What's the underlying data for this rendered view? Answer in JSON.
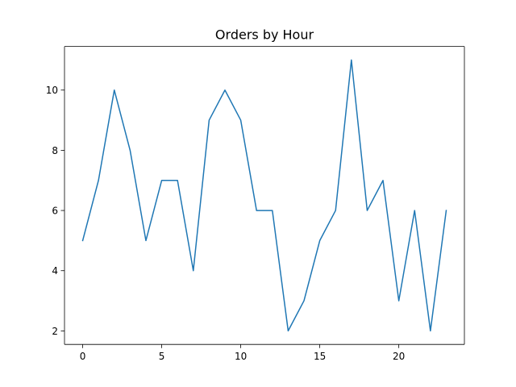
{
  "chart_data": {
    "type": "line",
    "title": "Orders by Hour",
    "xlabel": "",
    "ylabel": "",
    "x": [
      0,
      1,
      2,
      3,
      4,
      5,
      6,
      7,
      8,
      9,
      10,
      11,
      12,
      13,
      14,
      15,
      16,
      17,
      18,
      19,
      20,
      21,
      22,
      23
    ],
    "series": [
      {
        "values": [
          5,
          7,
          10,
          8,
          5,
          7,
          7,
          4,
          9,
          10,
          9,
          6,
          6,
          2,
          3,
          5,
          6,
          11,
          6,
          7,
          3,
          6,
          2,
          6
        ],
        "color": "#1f77b4"
      }
    ],
    "xlim": [
      -1.15,
      24.15
    ],
    "ylim": [
      1.55,
      11.45
    ],
    "xticks": [
      0,
      5,
      10,
      15,
      20
    ],
    "yticks": [
      2,
      4,
      6,
      8,
      10
    ],
    "grid": false,
    "legend": false
  }
}
